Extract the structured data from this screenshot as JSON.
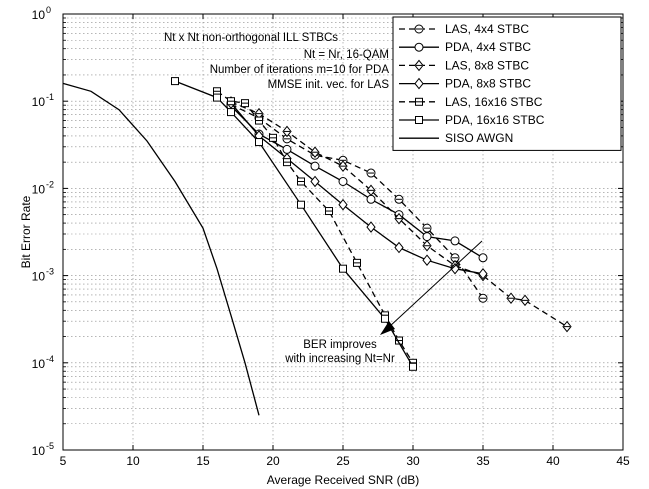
{
  "chart_data": {
    "type": "line",
    "xlabel": "Average Received SNR (dB)",
    "ylabel": "Bit Error Rate",
    "xlim": [
      5,
      45
    ],
    "ylim": [
      1e-05,
      1
    ],
    "yscale": "log",
    "x_ticks": [
      "5",
      "10",
      "15",
      "20",
      "25",
      "30",
      "35",
      "40",
      "45"
    ],
    "y_ticks": [
      {
        "base": "10",
        "exp": "0"
      },
      {
        "base": "10",
        "exp": "-1"
      },
      {
        "base": "10",
        "exp": "-2"
      },
      {
        "base": "10",
        "exp": "-3"
      },
      {
        "base": "10",
        "exp": "-4"
      },
      {
        "base": "10",
        "exp": "-5"
      }
    ],
    "grid": true,
    "legend_position": "top-right",
    "annotations": {
      "info_lines": [
        "Nt x Nt non-orthogonal ILL STBCs",
        "Nt = Nr, 16-QAM",
        "Number of iterations m=10 for PDA",
        "MMSE init. vec. for LAS"
      ],
      "arrow_lines": [
        "BER improves",
        "with increasing Nt=Nr"
      ]
    },
    "series": [
      {
        "name": "LAS, 4x4 STBC",
        "line": "dashed",
        "marker": "circle-bar",
        "color": "#000000",
        "x": [
          17,
          19,
          21,
          23,
          25,
          27,
          29,
          31,
          33,
          35
        ],
        "y": [
          0.092,
          0.064,
          0.037,
          0.024,
          0.021,
          0.015,
          0.0075,
          0.0035,
          0.0016,
          0.00055
        ]
      },
      {
        "name": "PDA, 4x4 STBC",
        "line": "solid",
        "marker": "circle",
        "color": "#000000",
        "x": [
          17,
          19,
          21,
          23,
          25,
          27,
          29,
          31,
          33,
          35
        ],
        "y": [
          0.088,
          0.042,
          0.028,
          0.018,
          0.012,
          0.0075,
          0.005,
          0.0028,
          0.0025,
          0.0016
        ]
      },
      {
        "name": "LAS, 8x8 STBC",
        "line": "dashed",
        "marker": "diamond-bar",
        "color": "#000000",
        "x": [
          17,
          19,
          21,
          23,
          25,
          27,
          29,
          31,
          33,
          35,
          37,
          38,
          41
        ],
        "y": [
          0.098,
          0.072,
          0.045,
          0.026,
          0.018,
          0.0095,
          0.0045,
          0.0022,
          0.0013,
          0.001,
          0.00055,
          0.00052,
          0.00026
        ]
      },
      {
        "name": "PDA, 8x8 STBC",
        "line": "solid",
        "marker": "diamond",
        "color": "#000000",
        "x": [
          17,
          19,
          21,
          23,
          25,
          27,
          29,
          31,
          33,
          35
        ],
        "y": [
          0.095,
          0.04,
          0.022,
          0.012,
          0.0065,
          0.0036,
          0.0021,
          0.0015,
          0.0012,
          0.00105
        ]
      },
      {
        "name": "LAS, 16x16 STBC",
        "line": "dashed",
        "marker": "square-bar",
        "color": "#000000",
        "x": [
          16,
          17,
          18,
          19,
          20,
          21,
          22,
          24,
          26,
          28,
          29,
          30
        ],
        "y": [
          0.13,
          0.1,
          0.095,
          0.06,
          0.038,
          0.02,
          0.012,
          0.0055,
          0.0014,
          0.00035,
          0.00018,
          0.0001
        ]
      },
      {
        "name": "PDA, 16x16 STBC",
        "line": "solid",
        "marker": "square",
        "color": "#000000",
        "x": [
          13,
          16,
          17,
          19,
          22,
          25,
          28,
          30
        ],
        "y": [
          0.17,
          0.11,
          0.075,
          0.034,
          0.0065,
          0.0012,
          0.00032,
          9e-05
        ]
      },
      {
        "name": "SISO AWGN",
        "line": "solid",
        "marker": "none",
        "color": "#000000",
        "x": [
          5,
          7,
          9,
          11,
          13,
          15,
          16,
          17,
          18,
          19
        ],
        "y": [
          0.16,
          0.13,
          0.08,
          0.035,
          0.012,
          0.0035,
          0.0012,
          0.00035,
          0.0001,
          2.5e-05
        ]
      }
    ]
  }
}
